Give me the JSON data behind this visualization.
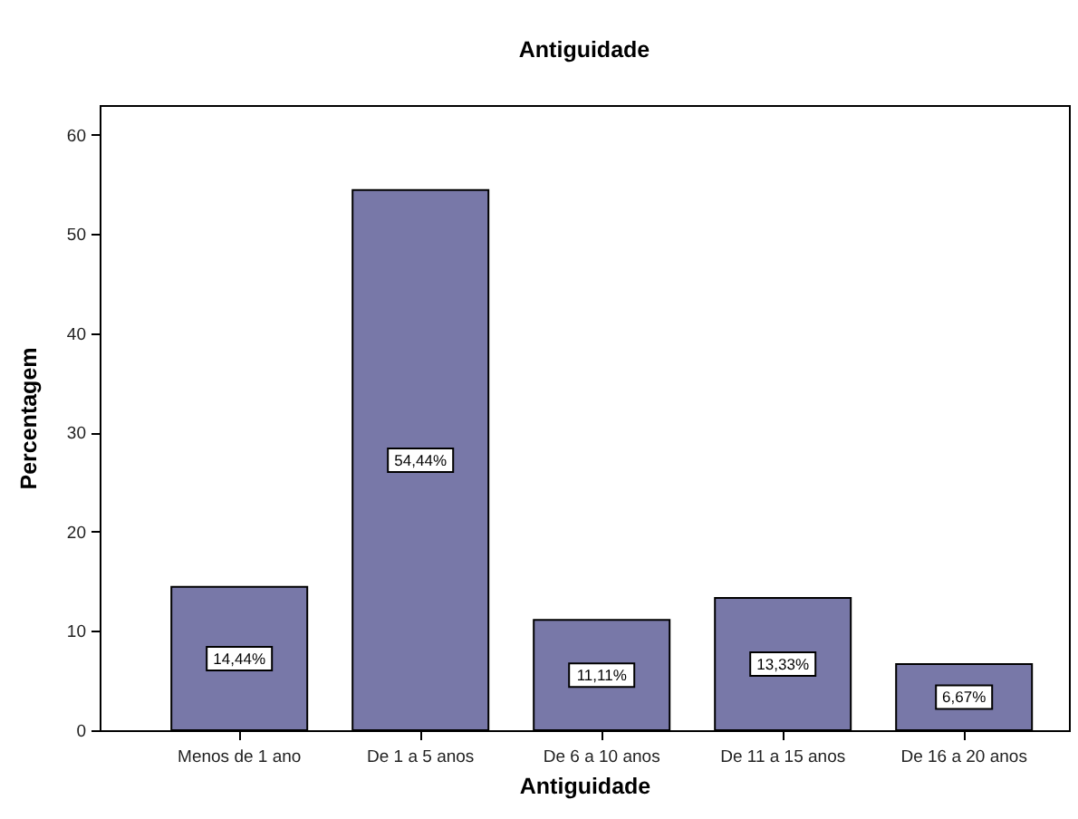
{
  "chart_data": {
    "type": "bar",
    "title": "Antiguidade",
    "xlabel": "Antiguidade",
    "ylabel": "Percentagem",
    "categories": [
      "Menos de 1 ano",
      "De 1 a 5 anos",
      "De 6 a 10 anos",
      "De 11 a 15 anos",
      "De 16 a 20 anos"
    ],
    "values": [
      14.44,
      54.44,
      11.11,
      13.33,
      6.67
    ],
    "color": "#7878a8",
    "value_labels": [
      "14,44%",
      "54,44%",
      "11,11%",
      "13,33%",
      "6,67%"
    ],
    "ylim": [
      0,
      63
    ],
    "yticks": [
      0,
      10,
      20,
      30,
      40,
      50,
      60
    ]
  }
}
